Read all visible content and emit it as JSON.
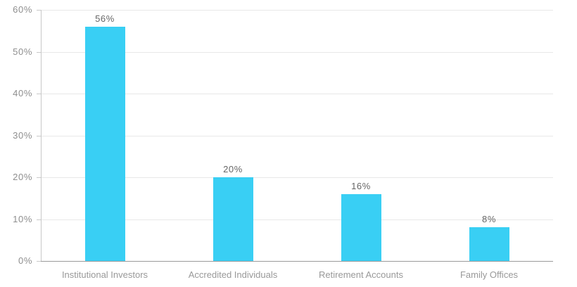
{
  "chart_data": {
    "type": "bar",
    "title": "",
    "subtitle": "",
    "categories": [
      "Institutional Investors",
      "Accredited Individuals",
      "Retirement Accounts",
      "Family Offices"
    ],
    "values": [
      56,
      20,
      16,
      8
    ],
    "value_labels": [
      "56%",
      "20%",
      "16%",
      "8%"
    ],
    "y_ticks": [
      0,
      10,
      20,
      30,
      40,
      50,
      60
    ],
    "y_tick_labels": [
      "0%",
      "10%",
      "20%",
      "30%",
      "40%",
      "50%",
      "60%"
    ],
    "ylim": [
      0,
      60
    ],
    "xlabel": "",
    "ylabel": "",
    "grid": "horizontal",
    "legend_position": "none",
    "colors": {
      "bar": "#39CFF4",
      "gridline": "#E8E8E8",
      "axis_line": "#C9C9C9",
      "baseline": "#9B9B9B",
      "y_tick_label_text": "#8E8E8E",
      "category_label_text": "#999999",
      "value_label_text": "#666666",
      "background": "#FFFFFF"
    }
  }
}
